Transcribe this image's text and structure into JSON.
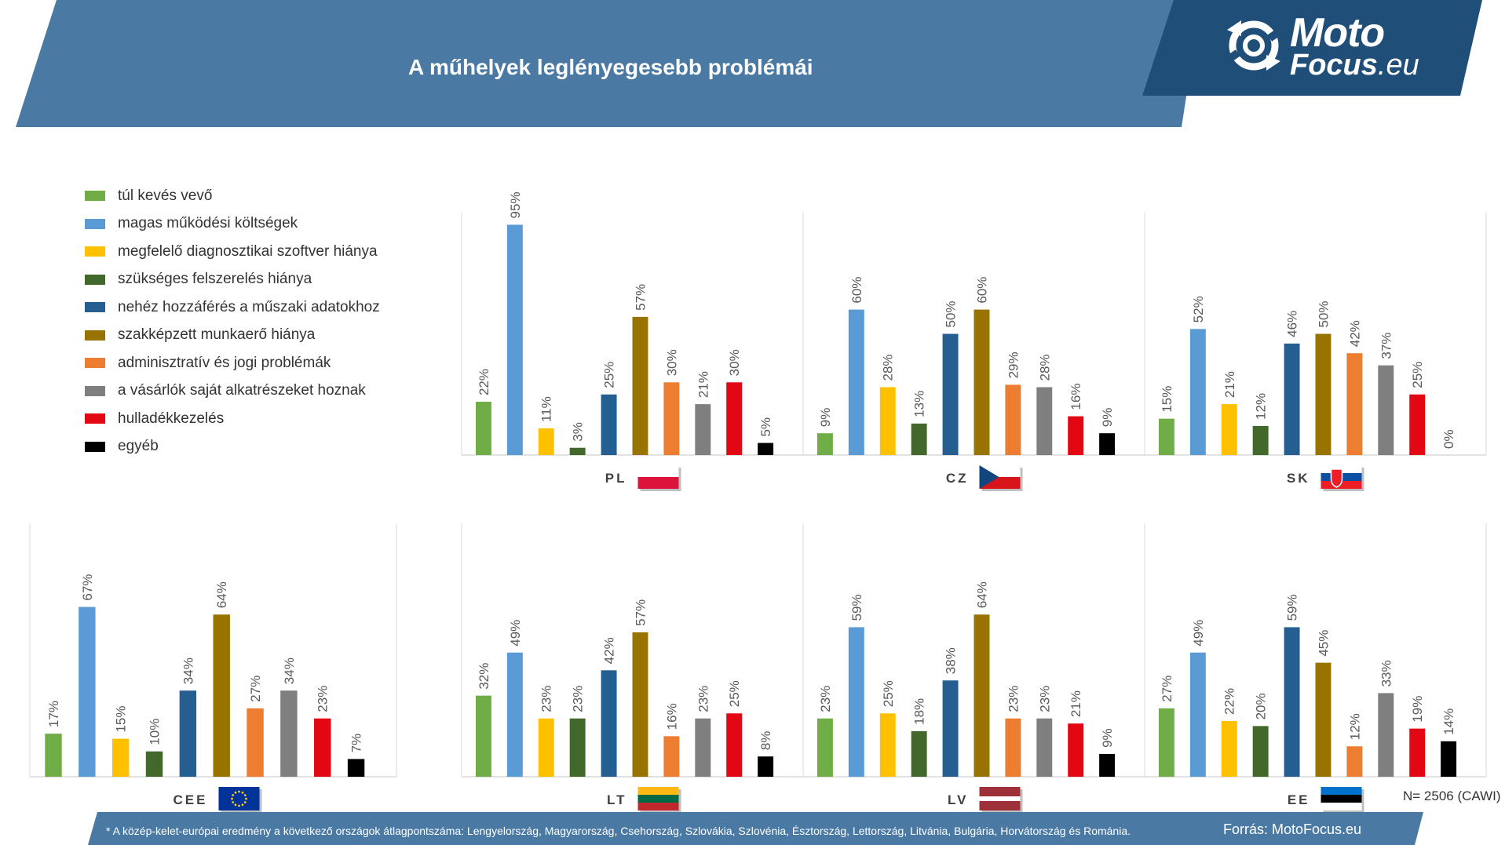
{
  "header": {
    "title": "A műhelyek leglényegesebb problémái",
    "banner_color": "#4a7aa3",
    "logo_color": "#1f4e79"
  },
  "logo": {
    "line1": "Moto",
    "line2": "Focus",
    "line2_domain": ".eu",
    "icon": "refresh-arrows-icon"
  },
  "legend": {
    "items": [
      {
        "label": "túl kevés vevő",
        "color": "#70ad47"
      },
      {
        "label": "magas működési költségek",
        "color": "#5b9bd5"
      },
      {
        "label": "megfelelő diagnosztikai szoftver hiánya",
        "color": "#ffc000"
      },
      {
        "label": "szükséges felszerelés hiánya",
        "color": "#43682b"
      },
      {
        "label": "nehéz hozzáférés a műszaki adatokhoz",
        "color": "#255e91"
      },
      {
        "label": "szakképzett munkaerő hiánya",
        "color": "#997300"
      },
      {
        "label": "adminisztratív és jogi problémák",
        "color": "#ed7d31"
      },
      {
        "label": "a vásárlók  saját alkatrészeket hoznak",
        "color": "#7f7f7f"
      },
      {
        "label": "hulladékkezelés",
        "color": "#e30613"
      },
      {
        "label": "egyéb",
        "color": "#000000"
      }
    ]
  },
  "chart_data": [
    {
      "type": "bar",
      "country": "PL",
      "flag": "poland-flag",
      "ylim": [
        0,
        100
      ],
      "values": [
        22,
        95,
        11,
        3,
        25,
        57,
        30,
        21,
        30,
        5
      ],
      "value_labels": [
        "22%",
        "95%",
        "11%",
        "3%",
        "25%",
        "57%",
        "30%",
        "21%",
        "30%",
        "5%"
      ]
    },
    {
      "type": "bar",
      "country": "CZ",
      "flag": "czech-flag",
      "ylim": [
        0,
        100
      ],
      "values": [
        9,
        60,
        28,
        13,
        50,
        60,
        29,
        28,
        16,
        9
      ],
      "value_labels": [
        "9%",
        "60%",
        "28%",
        "13%",
        "50%",
        "60%",
        "29%",
        "28%",
        "16%",
        "9%"
      ]
    },
    {
      "type": "bar",
      "country": "SK",
      "flag": "slovakia-flag",
      "ylim": [
        0,
        100
      ],
      "values": [
        15,
        52,
        21,
        12,
        46,
        50,
        42,
        37,
        25,
        0
      ],
      "value_labels": [
        "15%",
        "52%",
        "21%",
        "12%",
        "46%",
        "50%",
        "42%",
        "37%",
        "25%",
        "0%"
      ]
    },
    {
      "type": "bar",
      "country": "CEE",
      "flag": "eu-flag",
      "ylim": [
        0,
        100
      ],
      "values": [
        17,
        67,
        15,
        10,
        34,
        64,
        27,
        34,
        23,
        7
      ],
      "value_labels": [
        "17%",
        "67%",
        "15%",
        "10%",
        "34%",
        "64%",
        "27%",
        "34%",
        "23%",
        "7%"
      ]
    },
    {
      "type": "bar",
      "country": "LT",
      "flag": "lithuania-flag",
      "ylim": [
        0,
        100
      ],
      "values": [
        32,
        49,
        23,
        23,
        42,
        57,
        16,
        23,
        25,
        8
      ],
      "value_labels": [
        "32%",
        "49%",
        "23%",
        "23%",
        "42%",
        "57%",
        "16%",
        "23%",
        "25%",
        "8%"
      ]
    },
    {
      "type": "bar",
      "country": "LV",
      "flag": "latvia-flag",
      "ylim": [
        0,
        100
      ],
      "values": [
        23,
        59,
        25,
        18,
        38,
        64,
        23,
        23,
        21,
        9
      ],
      "value_labels": [
        "23%",
        "59%",
        "25%",
        "18%",
        "38%",
        "64%",
        "23%",
        "23%",
        "21%",
        "9%"
      ]
    },
    {
      "type": "bar",
      "country": "EE",
      "flag": "estonia-flag",
      "ylim": [
        0,
        100
      ],
      "values": [
        27,
        49,
        22,
        20,
        59,
        45,
        12,
        33,
        19,
        14
      ],
      "value_labels": [
        "27%",
        "49%",
        "22%",
        "20%",
        "59%",
        "45%",
        "12%",
        "33%",
        "19%",
        "14%"
      ]
    }
  ],
  "footer": {
    "footnote": "* A közép-kelet-európai eredmény a következő országok átlagpontszáma: Lengyelország, Magyarország, Csehország, Szlovákia, Szlovénia, Észtország, Lettország, Litvánia, Bulgária, Horvátország és Románia.",
    "source": "Forrás: MotoFocus.eu",
    "sample": "N= 2506 (CAWI)"
  }
}
